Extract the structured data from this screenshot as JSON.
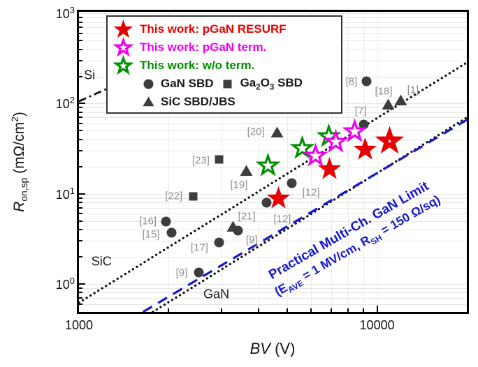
{
  "figure": {
    "background": "#ffffff"
  },
  "axes": {
    "x": {
      "title_parts": [
        "BV",
        " (V)"
      ],
      "major_ticks": [
        {
          "v": 1000,
          "label": "1000"
        },
        {
          "v": 10000,
          "label": "10000"
        }
      ],
      "minor_ticks": [
        2000,
        3000,
        4000,
        5000,
        6000,
        7000,
        8000,
        9000
      ]
    },
    "y": {
      "title_parts": [
        "R",
        "on,sp",
        " (mΩ/cm",
        "2",
        ")"
      ],
      "major_ticks": [
        {
          "v": 1000,
          "base": "10",
          "exp": "3"
        },
        {
          "v": 100,
          "base": "10",
          "exp": "2"
        },
        {
          "v": 10,
          "base": "10",
          "exp": "1"
        },
        {
          "v": 1,
          "base": "10",
          "exp": "0"
        }
      ],
      "minor_ticks": [
        0.5,
        0.6,
        0.7,
        0.8,
        0.9,
        2,
        3,
        4,
        5,
        6,
        7,
        8,
        9,
        20,
        30,
        40,
        50,
        60,
        70,
        80,
        90,
        200,
        300,
        400,
        500,
        600,
        700,
        800,
        900
      ]
    }
  },
  "legend": {
    "items": [
      {
        "label": "This work: pGaN RESURF",
        "color": "#e60000",
        "marker": "star",
        "fill": "filled",
        "mcolor": "#e60000"
      },
      {
        "label": "This work: pGaN term.",
        "color": "#ee00ee",
        "marker": "star",
        "fill": "open",
        "mcolor": "#ee00ee"
      },
      {
        "label": "This work: w/o term.",
        "color": "#009000",
        "marker": "star",
        "fill": "open",
        "mcolor": "#009000"
      },
      {
        "label": "GaN SBD",
        "color": "#1a1a1a",
        "marker": "circle",
        "fill": "filled",
        "mcolor": "#3d3d3d"
      },
      {
        "label": "Ga2O3 SBD",
        "parts": [
          "Ga",
          "2",
          "O",
          "3",
          " SBD"
        ],
        "color": "#1a1a1a",
        "marker": "square",
        "fill": "filled",
        "mcolor": "#3d3d3d"
      },
      {
        "label": "SiC SBD/JBS",
        "color": "#1a1a1a",
        "marker": "triangle",
        "fill": "filled",
        "mcolor": "#3d3d3d"
      }
    ]
  },
  "chart_data": {
    "type": "scatter",
    "log_x": true,
    "log_y": true,
    "xlabel": "BV (V)",
    "ylabel": "R_on,sp (mΩ/cm²)",
    "xlim": [
      1000,
      20000
    ],
    "ylim": [
      0.49,
      1040
    ],
    "grid": true,
    "legend_position": "top-left",
    "series": [
      {
        "name": "GaN SBD",
        "marker": "circle",
        "fill": "filled",
        "color": "#3d3d3d",
        "points": [
          {
            "bv": 1960,
            "ron": 4.9,
            "ref": "[16]",
            "dx": -26,
            "dy": -1
          },
          {
            "bv": 2050,
            "ron": 3.7,
            "ref": "[15]",
            "dx": -30,
            "dy": 2
          },
          {
            "bv": 2530,
            "ron": 1.35,
            "ref": "[9]",
            "dx": -25,
            "dy": 1
          },
          {
            "bv": 2950,
            "ron": 2.9,
            "ref": "[17]",
            "dx": -28,
            "dy": 8
          },
          {
            "bv": 3410,
            "ron": 3.9,
            "ref": "[9]",
            "dx": 20,
            "dy": 13
          },
          {
            "bv": 4270,
            "ron": 8.0,
            "ref": "[12]",
            "dx": 22,
            "dy": 24
          },
          {
            "bv": 5160,
            "ron": 13.2,
            "ref": "[12]",
            "dx": 28,
            "dy": 14
          },
          {
            "bv": 9000,
            "ron": 59,
            "ref": "[7]",
            "dx": -4,
            "dy": -19
          },
          {
            "bv": 9240,
            "ron": 178,
            "ref": "[8]",
            "dx": -22,
            "dy": 1
          }
        ]
      },
      {
        "name": "Ga2O3 SBD",
        "marker": "square",
        "fill": "filled",
        "color": "#3d3d3d",
        "points": [
          {
            "bv": 2420,
            "ron": 9.4,
            "ref": "[22]",
            "dx": -28,
            "dy": 0
          },
          {
            "bv": 2950,
            "ron": 24.2,
            "ref": "[23]",
            "dx": -26,
            "dy": 2
          }
        ]
      },
      {
        "name": "SiC SBD/JBS",
        "marker": "triangle",
        "fill": "filled",
        "color": "#3d3d3d",
        "points": [
          {
            "bv": 3280,
            "ron": 4.3,
            "ref": "[21]",
            "dx": 20,
            "dy": -15
          },
          {
            "bv": 3650,
            "ron": 17.9,
            "ref": "[19]",
            "dx": -11,
            "dy": 20
          },
          {
            "bv": 4610,
            "ron": 47.6,
            "ref": "[20]",
            "dx": -30,
            "dy": -1
          },
          {
            "bv": 10870,
            "ron": 97,
            "ref": "[18]",
            "dx": -6,
            "dy": -19
          },
          {
            "bv": 12040,
            "ron": 108,
            "ref": "[1]",
            "dx": 17,
            "dy": -15
          }
        ]
      },
      {
        "name": "This work: w/o term.",
        "marker": "star",
        "fill": "open",
        "color": "#009000",
        "points": [
          {
            "bv": 4300,
            "ron": 20.3
          },
          {
            "bv": 5600,
            "ron": 32.2
          },
          {
            "bv": 6870,
            "ron": 43.6
          }
        ]
      },
      {
        "name": "This work: pGaN term.",
        "marker": "star",
        "fill": "open",
        "color": "#ee00ee",
        "points": [
          {
            "bv": 6230,
            "ron": 26.5
          },
          {
            "bv": 7250,
            "ron": 37.8
          },
          {
            "bv": 8390,
            "ron": 49.4
          }
        ]
      },
      {
        "name": "This work: pGaN RESURF",
        "marker": "star",
        "fill": "filled",
        "color": "#e60000",
        "points": [
          {
            "bv": 4660,
            "ron": 8.8
          },
          {
            "bv": 6940,
            "ron": 18.6
          },
          {
            "bv": 9100,
            "ron": 30.6
          },
          {
            "bv": 10990,
            "ron": 38.5,
            "variant": "thick-open"
          }
        ]
      }
    ],
    "limit_lines": [
      {
        "name": "Si unipolar limit",
        "style": "dashdot",
        "color": "#111111",
        "x1": 1000,
        "y1": 106,
        "x2": 1320,
        "y2": 160
      },
      {
        "name": "SiC unipolar limit",
        "style": "dotted",
        "color": "#111111",
        "x1": 1000,
        "y1": 0.62,
        "x2": 20000,
        "y2": 285
      },
      {
        "name": "GaN unipolar limit",
        "style": "dotted",
        "color": "#111111",
        "x1": 1770,
        "y1": 0.49,
        "x2": 20000,
        "y2": 70
      },
      {
        "name": "Practical multi-channel GaN limit",
        "style": "dashed",
        "color": "#1717cd",
        "x1": 1640,
        "y1": 0.49,
        "x2": 20000,
        "y2": 66
      }
    ],
    "region_labels": [
      {
        "text": "Si",
        "bv": 1085,
        "ron": 205
      },
      {
        "text": "SiC",
        "bv": 1190,
        "ron": 1.77
      },
      {
        "text": "GaN",
        "bv": 2890,
        "ron": 0.76
      }
    ],
    "annotation": {
      "line1": "Practical Multi-Ch. GaN Limit",
      "line2_parts": [
        "(E",
        "AVE",
        " = 1 MV/cm, R",
        "SH",
        " = 150 Ω/sq)"
      ],
      "color": "#1717cd",
      "bv": 8390,
      "ron": 3.18,
      "rotation_deg": -30
    }
  }
}
